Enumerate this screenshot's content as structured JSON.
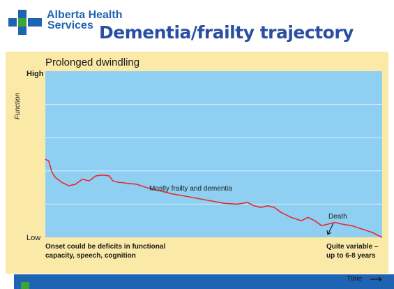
{
  "header": {
    "org_line1": "Alberta Health",
    "org_line2": "Services",
    "title": "Dementia/frailty trajectory"
  },
  "colors": {
    "brand_blue": "#1f63b3",
    "brand_green": "#3aa637",
    "title_blue": "#2a4fa0",
    "figure_bg": "#fbe9a8",
    "plot_bg": "#8fd0f2",
    "gridline": "#d9eefa",
    "line": "#e8292f"
  },
  "chart_data": {
    "type": "line",
    "title": "Prolonged dwindling",
    "ylabel": "Function",
    "xlabel": "Time",
    "y_tick_labels": [
      "High",
      "Low"
    ],
    "xlim": [
      0,
      100
    ],
    "ylim": [
      0,
      100
    ],
    "grid": true,
    "series": [
      {
        "x": [
          0,
          1,
          2,
          3,
          5,
          7,
          9,
          11,
          13,
          15,
          17,
          19,
          20,
          22,
          23,
          24,
          27,
          30,
          32,
          34,
          36,
          38,
          41,
          45,
          49,
          53,
          57,
          60,
          62,
          64,
          66,
          68,
          70,
          73,
          76,
          78,
          80,
          82,
          84,
          86,
          88,
          91,
          94,
          97,
          100
        ],
        "y": [
          47,
          46,
          39,
          36,
          33,
          31,
          32,
          35,
          34,
          37,
          37.5,
          37,
          34,
          33,
          33,
          32.5,
          32,
          30,
          29,
          28,
          27,
          26,
          25,
          23.5,
          22,
          20.5,
          20,
          21,
          19,
          18,
          19,
          18,
          15,
          12,
          10,
          12,
          10,
          7,
          8,
          9,
          8,
          7,
          5,
          3,
          0
        ]
      }
    ],
    "annotations": [
      {
        "text": "Mostly frailty and dementia"
      },
      {
        "text": "Death"
      },
      {
        "text_lines": [
          "Onset could be deficits in functional",
          "capacity, speech, cognition"
        ]
      },
      {
        "text_lines": [
          "Quite variable –",
          "up to 6-8 years"
        ]
      }
    ]
  }
}
